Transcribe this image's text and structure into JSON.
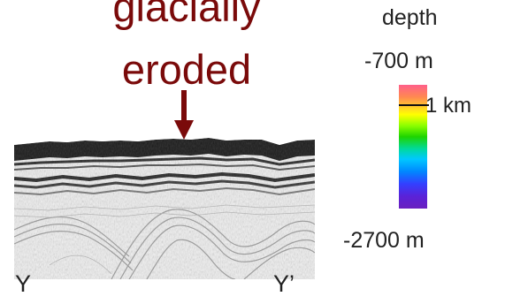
{
  "annotation": {
    "line1": "glacially",
    "line2": "eroded",
    "color": "#7a0a0a"
  },
  "profile": {
    "left_label": "Y",
    "right_label": "Y’"
  },
  "legend": {
    "title": "depth",
    "top_label": "-700 m",
    "bottom_label": "-2700 m",
    "marker_label": "1 km",
    "colors": [
      "#ff5f8a",
      "#ff8a50",
      "#ffce2a",
      "#ffff00",
      "#8cff00",
      "#1ed400",
      "#00d9a0",
      "#00c8ff",
      "#0088ff",
      "#3340ff",
      "#5a22d8",
      "#6a1fbf"
    ]
  }
}
